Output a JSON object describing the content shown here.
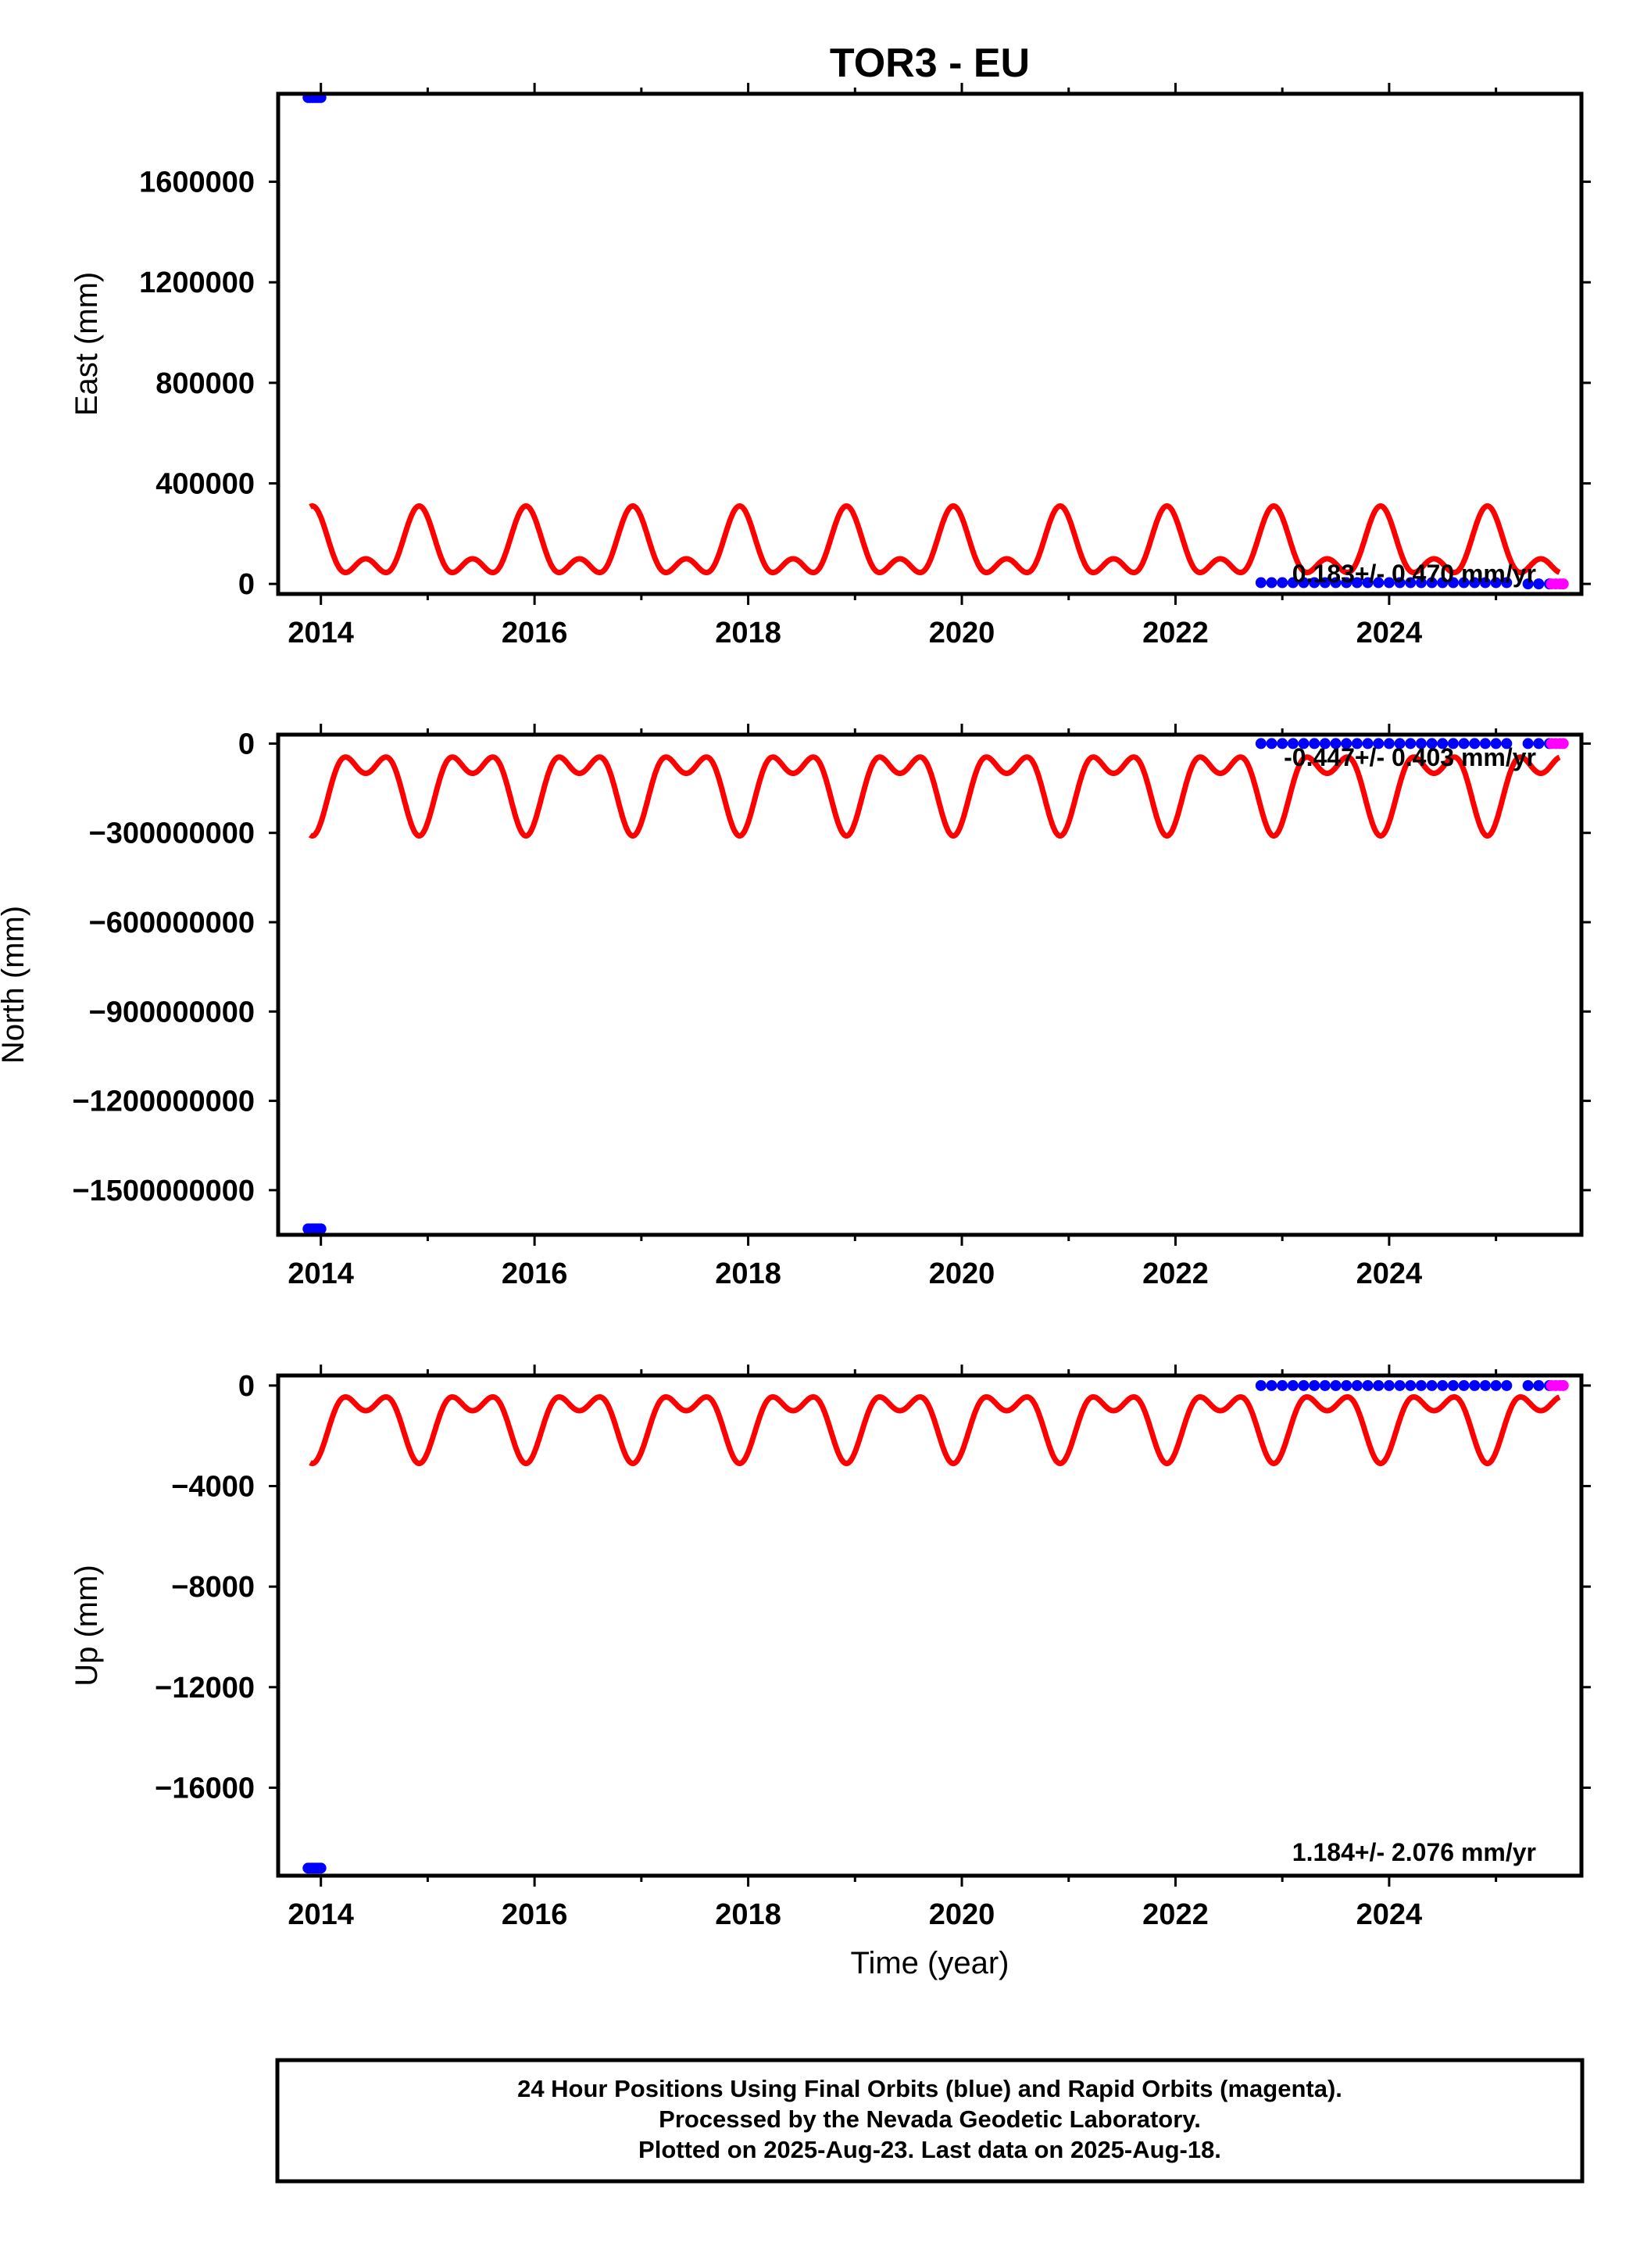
{
  "title": "TOR3 - EU",
  "xlabel": "Time (year)",
  "footer": {
    "line1": "24 Hour Positions Using Final Orbits (blue) and Rapid Orbits (magenta).",
    "line2": "Processed by the Nevada Geodetic Laboratory.",
    "line3": "Plotted on 2025-Aug-23. Last data on 2025-Aug-18."
  },
  "colors": {
    "final_orbits": "#0000ff",
    "rapid_orbits": "#ff00ff",
    "model": "#ff0000",
    "frame": "#000000"
  },
  "chart_data": [
    {
      "type": "scatter",
      "ylabel": "East (mm)",
      "rate_label": "0.183+/- 0.470 mm/yr",
      "xlim": [
        2013.6,
        2025.8
      ],
      "ylim": [
        -40000,
        1950000
      ],
      "yticks": [
        0,
        400000,
        800000,
        1200000,
        1600000
      ],
      "ytick_labels": [
        "0",
        "400000",
        "800000",
        "1200000",
        "1600000"
      ],
      "xticks": [
        2014,
        2016,
        2018,
        2020,
        2022,
        2024
      ],
      "xtick_labels": [
        "2014",
        "2016",
        "2018",
        "2020",
        "2022",
        "2024"
      ],
      "grid": false,
      "series": [
        {
          "name": "Final Orbits",
          "color": "#0000ff",
          "x": [
            2013.88,
            2013.9,
            2013.92,
            2013.94,
            2013.96,
            2013.98,
            2014.0,
            2022.8,
            2022.9,
            2023.0,
            2023.1,
            2023.2,
            2023.3,
            2023.4,
            2023.5,
            2023.6,
            2023.7,
            2023.8,
            2023.9,
            2024.0,
            2024.1,
            2024.2,
            2024.3,
            2024.4,
            2024.5,
            2024.6,
            2024.7,
            2024.8,
            2024.9,
            2025.0,
            2025.1,
            2025.3,
            2025.4,
            2025.5
          ],
          "y": [
            1935000,
            1935000,
            1935000,
            1935000,
            1935000,
            1935000,
            1935000,
            5000,
            5000,
            5000,
            5000,
            5000,
            5000,
            5000,
            5000,
            5000,
            5000,
            5000,
            5000,
            5000,
            5000,
            5000,
            5000,
            5000,
            5000,
            5000,
            5000,
            5000,
            5000,
            5000,
            5000,
            0,
            0,
            0
          ]
        },
        {
          "name": "Rapid Orbits",
          "color": "#ff00ff",
          "x": [
            2025.52,
            2025.56,
            2025.6,
            2025.63
          ],
          "y": [
            0,
            0,
            0,
            0
          ]
        }
      ],
      "model": {
        "color": "#ff0000",
        "x_start": 2013.9,
        "x_end": 2025.6,
        "mean": 135000,
        "annual_amp": 105000,
        "semiannual_amp": 70000,
        "phase_year": 2013.92
      }
    },
    {
      "type": "scatter",
      "ylabel": "North (mm)",
      "rate_label": "-0.447+/- 0.403 mm/yr",
      "xlim": [
        2013.6,
        2025.8
      ],
      "ylim": [
        -1650000000,
        30000000
      ],
      "yticks": [
        0,
        -300000000,
        -600000000,
        -900000000,
        -1200000000,
        -1500000000
      ],
      "ytick_labels": [
        "0",
        "−300000000",
        "−600000000",
        "−900000000",
        "−1200000000",
        "−1500000000"
      ],
      "xticks": [
        2014,
        2016,
        2018,
        2020,
        2022,
        2024
      ],
      "xtick_labels": [
        "2014",
        "2016",
        "2018",
        "2020",
        "2022",
        "2024"
      ],
      "grid": false,
      "series": [
        {
          "name": "Final Orbits",
          "color": "#0000ff",
          "x": [
            2013.88,
            2013.9,
            2013.92,
            2013.94,
            2013.96,
            2013.98,
            2014.0,
            2022.8,
            2022.9,
            2023.0,
            2023.1,
            2023.2,
            2023.3,
            2023.4,
            2023.5,
            2023.6,
            2023.7,
            2023.8,
            2023.9,
            2024.0,
            2024.1,
            2024.2,
            2024.3,
            2024.4,
            2024.5,
            2024.6,
            2024.7,
            2024.8,
            2024.9,
            2025.0,
            2025.1,
            2025.3,
            2025.4,
            2025.5
          ],
          "y": [
            -1630000000,
            -1630000000,
            -1630000000,
            -1630000000,
            -1630000000,
            -1630000000,
            -1630000000,
            0,
            0,
            0,
            0,
            0,
            0,
            0,
            0,
            0,
            0,
            0,
            0,
            0,
            0,
            0,
            0,
            0,
            0,
            0,
            0,
            0,
            0,
            0,
            0,
            0,
            0,
            0
          ]
        },
        {
          "name": "Rapid Orbits",
          "color": "#ff00ff",
          "x": [
            2025.52,
            2025.56,
            2025.6,
            2025.63
          ],
          "y": [
            0,
            0,
            0,
            0
          ]
        }
      ],
      "model": {
        "color": "#ff0000",
        "x_start": 2013.9,
        "x_end": 2025.6,
        "mean": -135000000,
        "annual_amp": -105000000,
        "semiannual_amp": -70000000,
        "phase_year": 2013.92
      }
    },
    {
      "type": "scatter",
      "ylabel": "Up (mm)",
      "rate_label": "1.184+/- 2.076 mm/yr",
      "xlim": [
        2013.6,
        2025.8
      ],
      "ylim": [
        -19500,
        400
      ],
      "yticks": [
        0,
        -4000,
        -8000,
        -12000,
        -16000
      ],
      "ytick_labels": [
        "0",
        "−4000",
        "−8000",
        "−12000",
        "−16000"
      ],
      "xticks": [
        2014,
        2016,
        2018,
        2020,
        2022,
        2024
      ],
      "xtick_labels": [
        "2014",
        "2016",
        "2018",
        "2020",
        "2022",
        "2024"
      ],
      "grid": false,
      "series": [
        {
          "name": "Final Orbits",
          "color": "#0000ff",
          "x": [
            2013.88,
            2013.9,
            2013.92,
            2013.94,
            2013.96,
            2013.98,
            2014.0,
            2022.8,
            2022.9,
            2023.0,
            2023.1,
            2023.2,
            2023.3,
            2023.4,
            2023.5,
            2023.6,
            2023.7,
            2023.8,
            2023.9,
            2024.0,
            2024.1,
            2024.2,
            2024.3,
            2024.4,
            2024.5,
            2024.6,
            2024.7,
            2024.8,
            2024.9,
            2025.0,
            2025.1,
            2025.3,
            2025.4,
            2025.5
          ],
          "y": [
            -19200,
            -19200,
            -19200,
            -19200,
            -19200,
            -19200,
            -19200,
            0,
            0,
            0,
            0,
            0,
            0,
            0,
            0,
            0,
            0,
            0,
            0,
            0,
            0,
            0,
            0,
            0,
            0,
            0,
            0,
            0,
            0,
            0,
            0,
            0,
            0,
            0
          ]
        },
        {
          "name": "Rapid Orbits",
          "color": "#ff00ff",
          "x": [
            2025.52,
            2025.56,
            2025.6,
            2025.63
          ],
          "y": [
            0,
            0,
            0,
            0
          ]
        }
      ],
      "model": {
        "color": "#ff0000",
        "x_start": 2013.9,
        "x_end": 2025.6,
        "mean": -1350,
        "annual_amp": -1050,
        "semiannual_amp": -700,
        "phase_year": 2013.92
      }
    }
  ]
}
